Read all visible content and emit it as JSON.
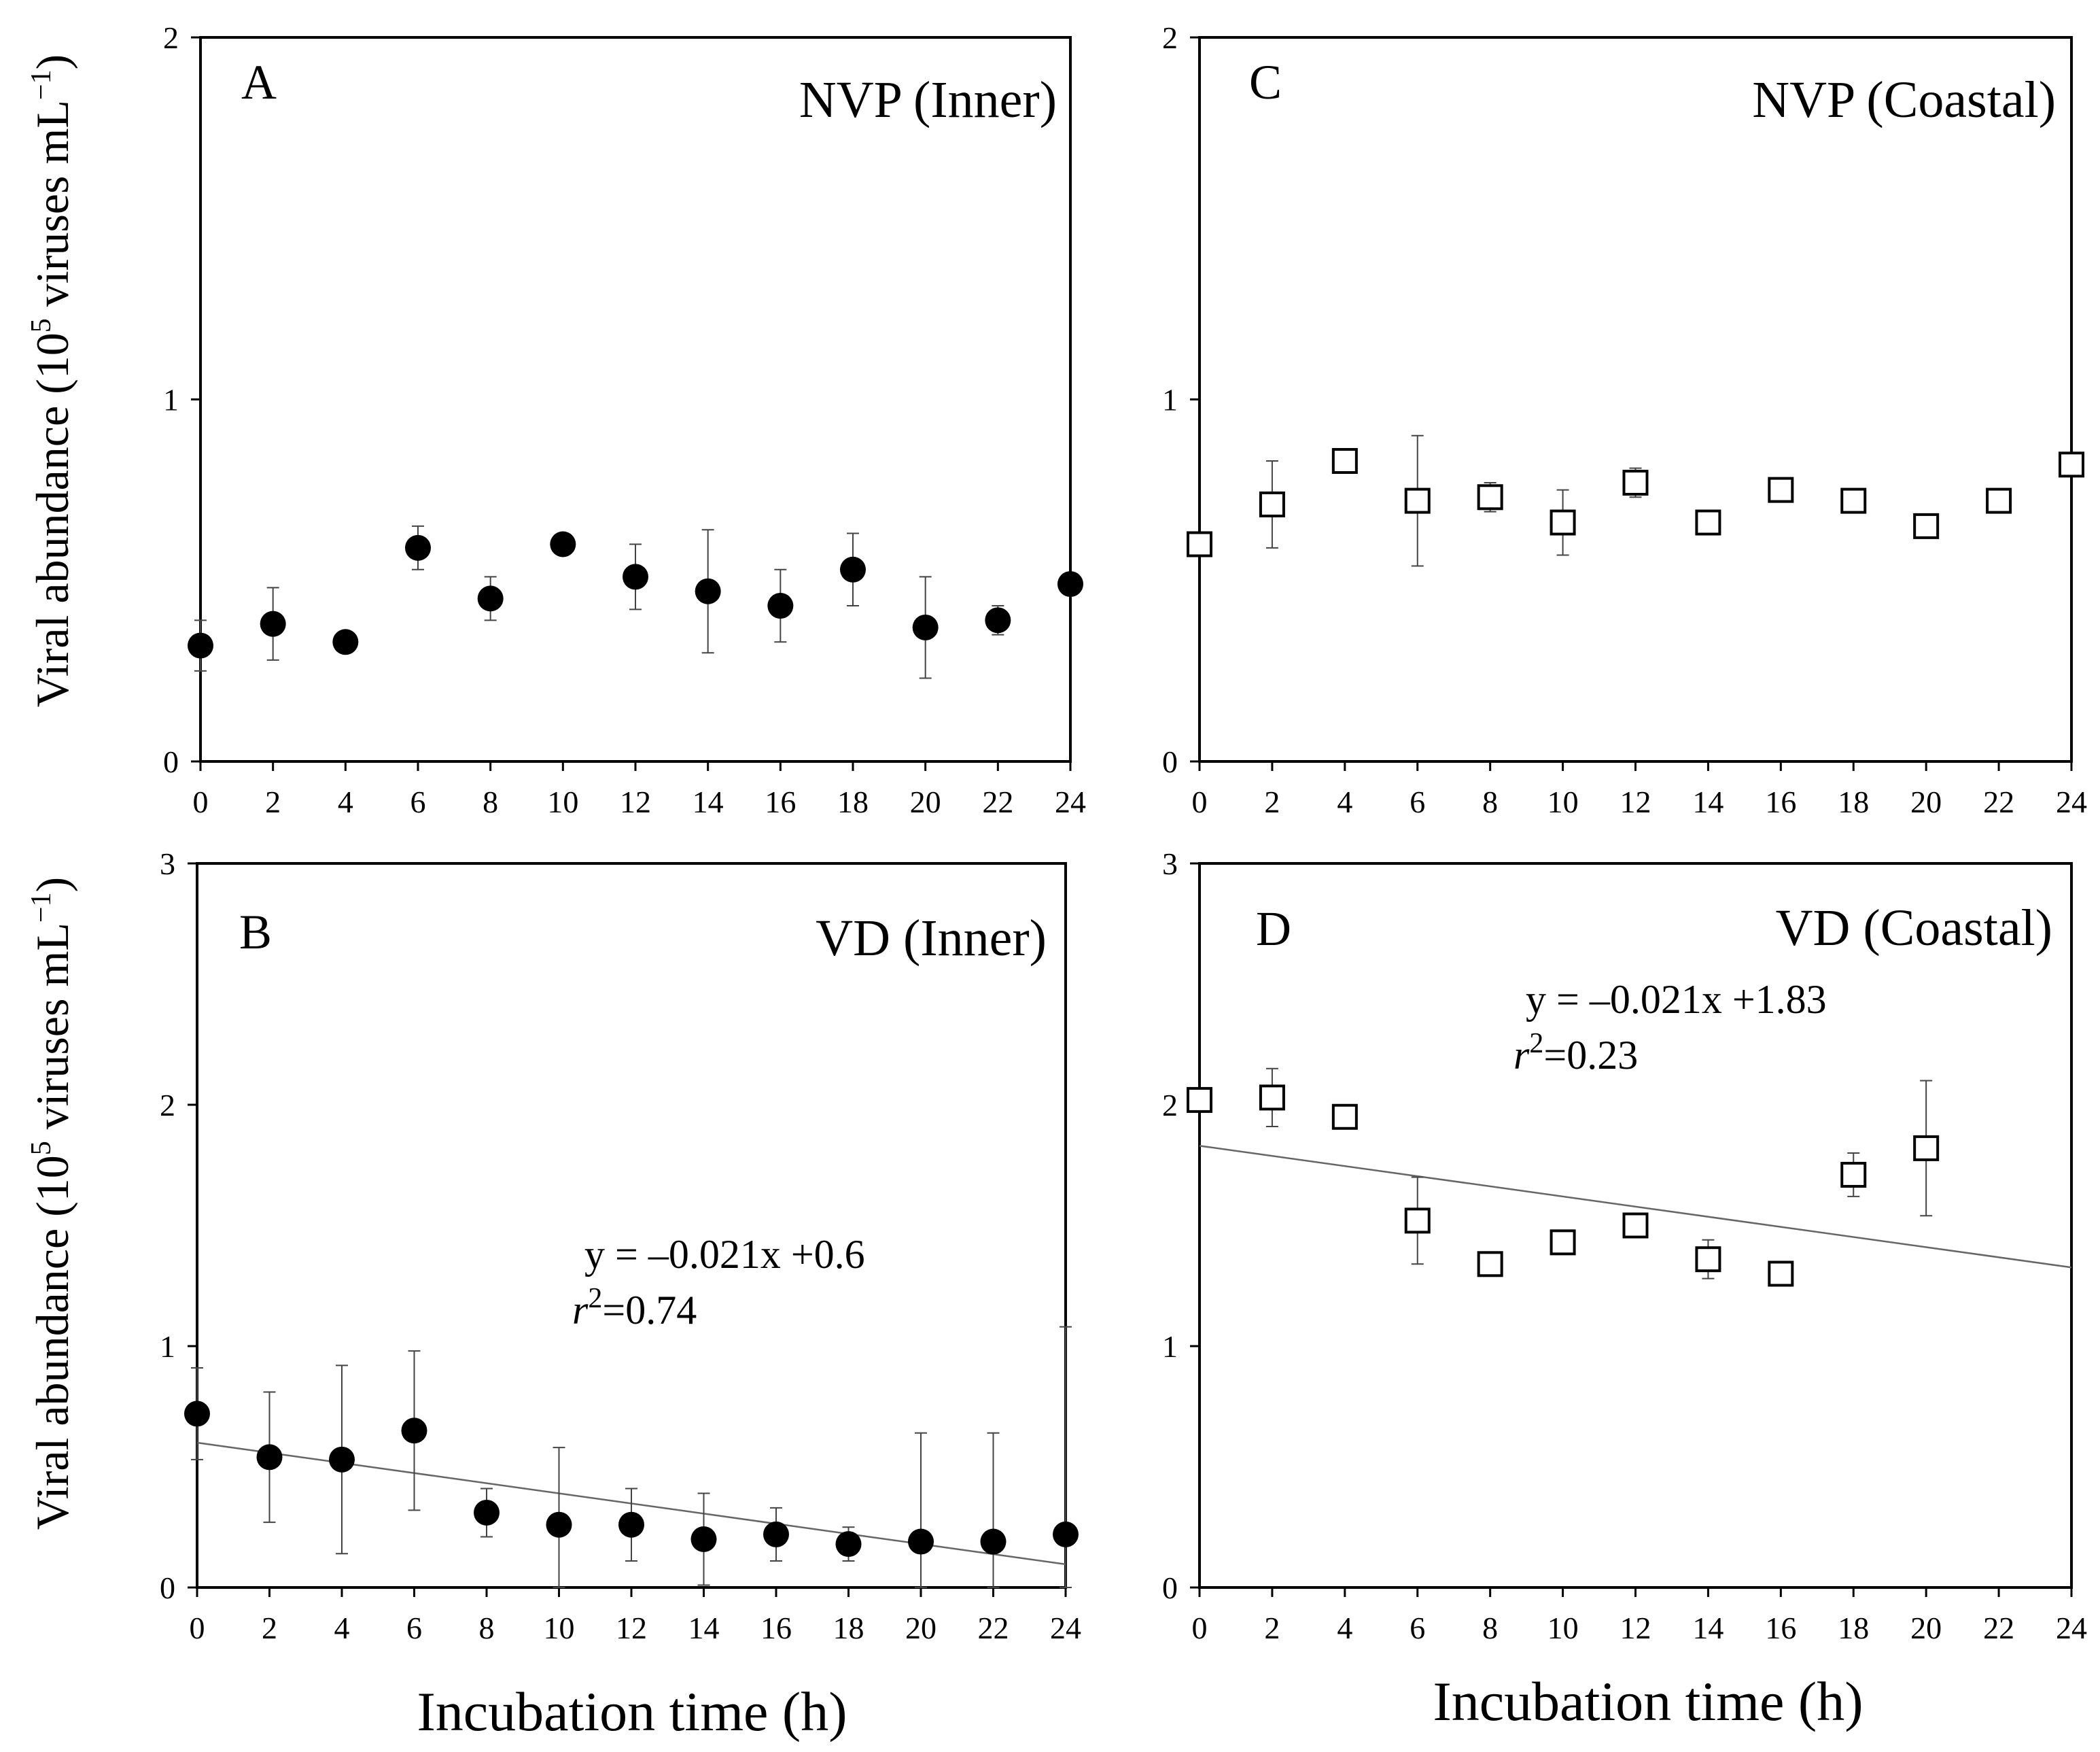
{
  "y_axis_label": "Viral abundance (10",
  "y_axis_exp": "5",
  "y_axis_label_tail": " viruses mL",
  "y_axis_label_exp2": "−1",
  "y_axis_label_close": ")",
  "x_axis_label": "Incubation time (h)",
  "chart_data": [
    {
      "panel": "A",
      "title": "NVP (Inner)",
      "type": "scatter",
      "marker": "filled-circle",
      "xlabel": "Incubation time (h)",
      "ylabel": "Viral abundance (10^5 viruses mL−1)",
      "xlim": [
        0,
        24
      ],
      "ylim": [
        0,
        2
      ],
      "xticks": [
        "0",
        "2",
        "4",
        "6",
        "8",
        "10",
        "12",
        "14",
        "16",
        "18",
        "20",
        "22",
        "24"
      ],
      "yticks": [
        "0",
        "1",
        "2"
      ],
      "x": [
        0,
        2,
        4,
        6,
        8,
        10,
        12,
        14,
        16,
        18,
        20,
        22,
        24
      ],
      "y": [
        0.32,
        0.38,
        0.33,
        0.59,
        0.45,
        0.6,
        0.51,
        0.47,
        0.43,
        0.53,
        0.37,
        0.39,
        0.49
      ],
      "err": [
        0.07,
        0.1,
        0.0,
        0.06,
        0.06,
        0.0,
        0.09,
        0.17,
        0.1,
        0.1,
        0.14,
        0.04,
        0.0
      ]
    },
    {
      "panel": "B",
      "title": "VD (Inner)",
      "type": "scatter",
      "marker": "filled-circle",
      "xlabel": "Incubation time (h)",
      "ylabel": "Viral abundance (10^5 viruses mL−1)",
      "xlim": [
        0,
        24
      ],
      "ylim": [
        0,
        3
      ],
      "xticks": [
        "0",
        "2",
        "4",
        "6",
        "8",
        "10",
        "12",
        "14",
        "16",
        "18",
        "20",
        "22",
        "24"
      ],
      "yticks": [
        "0",
        "1",
        "2",
        "3"
      ],
      "x": [
        0,
        2,
        4,
        6,
        8,
        10,
        12,
        14,
        16,
        18,
        20,
        22,
        24
      ],
      "y": [
        0.72,
        0.54,
        0.53,
        0.65,
        0.31,
        0.26,
        0.26,
        0.2,
        0.22,
        0.18,
        0.19,
        0.19,
        0.22
      ],
      "err": [
        0.19,
        0.27,
        0.39,
        0.33,
        0.1,
        0.32,
        0.15,
        0.19,
        0.11,
        0.07,
        0.45,
        0.45,
        0.86
      ],
      "trendline": {
        "slope": -0.021,
        "intercept": 0.6
      },
      "equation": "y = –0.021x +0.6",
      "r2_symbol": "r",
      "r2_exp": "2",
      "r2_value": "=0.74"
    },
    {
      "panel": "C",
      "title": "NVP (Coastal)",
      "type": "scatter",
      "marker": "open-square",
      "xlabel": "Incubation time (h)",
      "ylabel": "Viral abundance (10^5 viruses mL−1)",
      "xlim": [
        0,
        24
      ],
      "ylim": [
        0,
        2
      ],
      "xticks": [
        "0",
        "2",
        "4",
        "6",
        "8",
        "10",
        "12",
        "14",
        "16",
        "18",
        "20",
        "22",
        "24"
      ],
      "yticks": [
        "0",
        "1",
        "2"
      ],
      "x": [
        0,
        2,
        4,
        6,
        8,
        10,
        12,
        14,
        16,
        18,
        20,
        22,
        24
      ],
      "y": [
        0.6,
        0.71,
        0.83,
        0.72,
        0.73,
        0.66,
        0.77,
        0.66,
        0.75,
        0.72,
        0.65,
        0.72,
        0.82
      ],
      "err": [
        0.0,
        0.12,
        0.02,
        0.18,
        0.04,
        0.09,
        0.04,
        0.0,
        0.03,
        0.03,
        0.0,
        0.02,
        0.0
      ]
    },
    {
      "panel": "D",
      "title": "VD (Coastal)",
      "type": "scatter",
      "marker": "open-square",
      "xlabel": "Incubation time (h)",
      "ylabel": "Viral abundance (10^5 viruses mL−1)",
      "xlim": [
        0,
        24
      ],
      "ylim": [
        0,
        3
      ],
      "xticks": [
        "0",
        "2",
        "4",
        "6",
        "8",
        "10",
        "12",
        "14",
        "16",
        "18",
        "20",
        "22",
        "24"
      ],
      "yticks": [
        "0",
        "1",
        "2",
        "3"
      ],
      "x": [
        0,
        2,
        4,
        6,
        8,
        10,
        12,
        14,
        16,
        18,
        20
      ],
      "y": [
        2.02,
        2.03,
        1.95,
        1.52,
        1.34,
        1.43,
        1.5,
        1.36,
        1.3,
        1.71,
        1.82
      ],
      "err": [
        0.05,
        0.12,
        0.03,
        0.18,
        0.03,
        0.04,
        0.04,
        0.08,
        0.05,
        0.09,
        0.28
      ],
      "trendline": {
        "slope": -0.021,
        "intercept": 1.83
      },
      "equation": "y = –0.021x +1.83",
      "r2_symbol": "r",
      "r2_exp": "2",
      "r2_value": "=0.23"
    }
  ]
}
